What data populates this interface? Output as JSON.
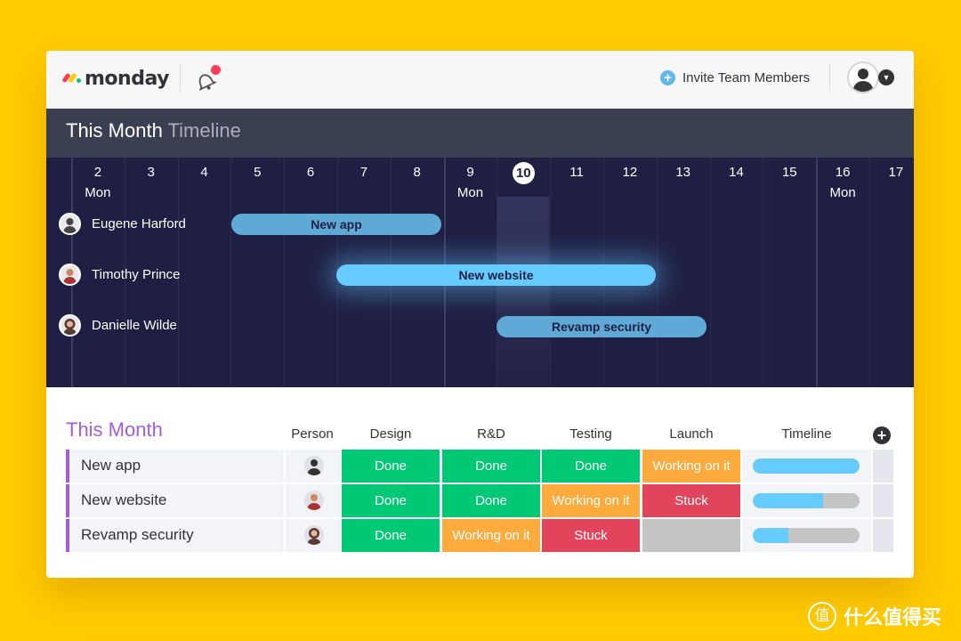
{
  "topbar": {
    "logo_text": "monday",
    "invite_label": "Invite Team Members",
    "colors": {
      "logo_red": "#ff3d57",
      "logo_yellow": "#ffcb00",
      "logo_green": "#00ca72",
      "notification_dot": "#ff3d57"
    }
  },
  "timeline": {
    "title": "This Month",
    "title_suffix": "Timeline",
    "days": [
      {
        "num": "2",
        "weekday": "Mon"
      },
      {
        "num": "3",
        "weekday": ""
      },
      {
        "num": "4",
        "weekday": ""
      },
      {
        "num": "5",
        "weekday": ""
      },
      {
        "num": "6",
        "weekday": ""
      },
      {
        "num": "7",
        "weekday": ""
      },
      {
        "num": "8",
        "weekday": ""
      },
      {
        "num": "9",
        "weekday": "Mon"
      },
      {
        "num": "10",
        "weekday": ""
      },
      {
        "num": "11",
        "weekday": ""
      },
      {
        "num": "12",
        "weekday": ""
      },
      {
        "num": "13",
        "weekday": ""
      },
      {
        "num": "14",
        "weekday": ""
      },
      {
        "num": "15",
        "weekday": ""
      },
      {
        "num": "16",
        "weekday": "Mon"
      },
      {
        "num": "17",
        "weekday": ""
      }
    ],
    "today": "10",
    "people": [
      {
        "name": "Eugene Harford"
      },
      {
        "name": "Timothy Prince"
      },
      {
        "name": "Danielle Wilde"
      }
    ],
    "bars": [
      {
        "label": "New app"
      },
      {
        "label": "New website"
      },
      {
        "label": "Revamp security"
      }
    ]
  },
  "table": {
    "title": "This Month",
    "headers": [
      "Person",
      "Design",
      "R&D",
      "Testing",
      "Launch",
      "Timeline"
    ],
    "rows": [
      {
        "name": "New app",
        "design": "Done",
        "rd": "Done",
        "testing": "Done",
        "launch": "Working on it",
        "timeline_progress": 1.0
      },
      {
        "name": "New website",
        "design": "Done",
        "rd": "Done",
        "testing": "Working on it",
        "launch": "Stuck",
        "timeline_progress": 0.66
      },
      {
        "name": "Revamp security",
        "design": "Done",
        "rd": "Working on it",
        "testing": "Stuck",
        "launch": "",
        "timeline_progress": 0.33
      }
    ],
    "status_colors": {
      "Done": "#00c875",
      "Working on it": "#fdab3d",
      "Stuck": "#e2445c",
      "empty": "#c4c4c4"
    },
    "group_color": "#a25ddc"
  },
  "watermark": {
    "icon_char": "值",
    "text": "什么值得买"
  }
}
